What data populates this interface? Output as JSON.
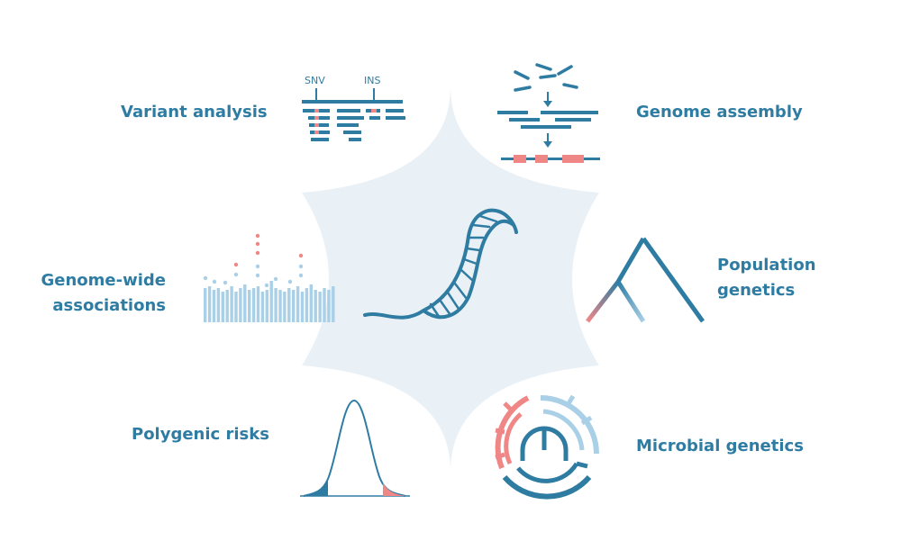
{
  "colors": {
    "primary": "#2f7ca3",
    "accent": "#f08787",
    "light": "#a9d0e6",
    "background_shape": "#eaf1f6"
  },
  "labels": {
    "variant_analysis": "Variant analysis",
    "genome_assembly": "Genome assembly",
    "genome_wide_line1": "Genome-wide",
    "genome_wide_line2": "associations",
    "population_line1": "Population",
    "population_line2": "genetics",
    "polygenic_risks": "Polygenic risks",
    "microbial_genetics": "Microbial genetics"
  },
  "variant": {
    "snv_label": "SNV",
    "ins_label": "INS"
  },
  "icons": {
    "center": "dna-helix-icon",
    "variant": "read-alignment-icon",
    "assembly": "assembly-flow-icon",
    "gwas": "manhattan-plot-icon",
    "population": "phylogenetic-tree-icon",
    "polygenic": "normal-distribution-icon",
    "microbial": "circular-tree-icon"
  }
}
